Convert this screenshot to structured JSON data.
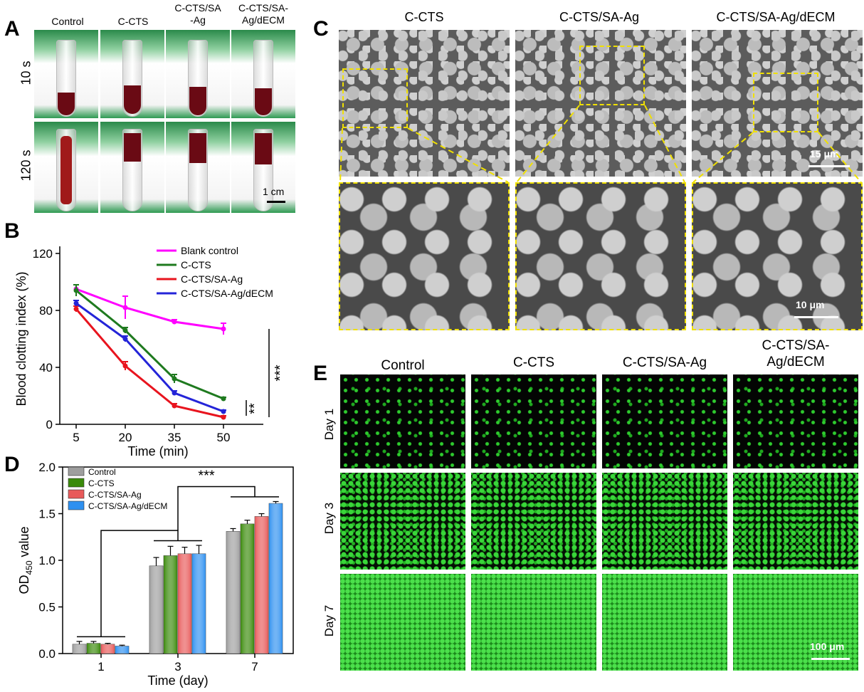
{
  "panel_labels": {
    "a": "A",
    "b": "B",
    "c": "C",
    "d": "D",
    "e": "E"
  },
  "panel_a": {
    "columns": [
      "Control",
      "C-CTS",
      "C-CTS/SA\n-Ag",
      "C-CTS/SA-\nAg/dECM"
    ],
    "rows": [
      "10 s",
      "120 s"
    ],
    "scalebar": "1 cm"
  },
  "panel_c": {
    "columns": [
      "C-CTS",
      "C-CTS/SA-Ag",
      "C-CTS/SA-Ag/dECM"
    ],
    "scalebar_top": "15 μm",
    "scalebar_bottom": "10 μm"
  },
  "panel_e": {
    "columns": [
      "Control",
      "C-CTS",
      "C-CTS/SA-Ag",
      "C-CTS/SA-\nAg/dECM"
    ],
    "rows": [
      "Day 1",
      "Day 3",
      "Day 7"
    ],
    "scalebar": "100 μm"
  },
  "chart_data": [
    {
      "type": "line",
      "panel": "B",
      "xlabel": "Time (min)",
      "ylabel": "Blood clotting index (%)",
      "x": [
        5,
        20,
        35,
        50
      ],
      "xticks": [
        "5",
        "20",
        "35",
        "50"
      ],
      "yticks": [
        "0",
        "40",
        "80",
        "120"
      ],
      "ylim": [
        0,
        120
      ],
      "series": [
        {
          "name": "Blank control",
          "color": "#ff00ff",
          "values": [
            95,
            82,
            72,
            67
          ],
          "errors": [
            3,
            8,
            1.5,
            4
          ]
        },
        {
          "name": "C-CTS",
          "color": "#1f7a1f",
          "values": [
            94,
            66,
            32,
            18
          ],
          "errors": [
            4,
            2,
            3,
            1
          ]
        },
        {
          "name": "C-CTS/SA-Ag",
          "color": "#e8141e",
          "values": [
            81,
            41,
            13,
            5
          ],
          "errors": [
            2,
            3,
            1.5,
            1
          ]
        },
        {
          "name": "C-CTS/SA-Ag/dECM",
          "color": "#2424d8",
          "values": [
            85,
            60,
            22,
            9
          ],
          "errors": [
            2,
            2,
            1.5,
            1
          ]
        }
      ],
      "significance": [
        "***",
        "**"
      ],
      "legend": "top-right"
    },
    {
      "type": "bar",
      "panel": "D",
      "xlabel": "Time (day)",
      "ylabel_main": "OD",
      "ylabel_sub": "450",
      "ylabel_rest": " value",
      "categories": [
        "1",
        "3",
        "7"
      ],
      "yticks": [
        "0.0",
        "0.5",
        "1.0",
        "1.5",
        "2.0"
      ],
      "ylim": [
        0,
        2.0
      ],
      "series": [
        {
          "name": "Control",
          "color": "#9e9e9e",
          "values": [
            0.1,
            0.94,
            1.31
          ],
          "errors": [
            0.03,
            0.09,
            0.03
          ]
        },
        {
          "name": "C-CTS",
          "color": "#3a8a0a",
          "values": [
            0.11,
            1.05,
            1.39
          ],
          "errors": [
            0.02,
            0.1,
            0.04
          ]
        },
        {
          "name": "C-CTS/SA-Ag",
          "color": "#e85a5a",
          "values": [
            0.1,
            1.07,
            1.47
          ],
          "errors": [
            0.01,
            0.07,
            0.03
          ]
        },
        {
          "name": "C-CTS/SA-Ag/dECM",
          "color": "#2e90f0",
          "values": [
            0.08,
            1.07,
            1.61
          ],
          "errors": [
            0.01,
            0.09,
            0.02
          ]
        }
      ],
      "significance": [
        "***"
      ],
      "legend": "top-left"
    }
  ]
}
